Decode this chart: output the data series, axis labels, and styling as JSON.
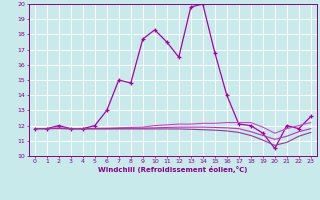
{
  "xlabel": "Windchill (Refroidissement éolien,°C)",
  "background_color": "#c8eaea",
  "grid_color": "#b0d8d8",
  "xlim": [
    -0.5,
    23.5
  ],
  "ylim": [
    10,
    20
  ],
  "yticks": [
    10,
    11,
    12,
    13,
    14,
    15,
    16,
    17,
    18,
    19,
    20
  ],
  "xticks": [
    0,
    1,
    2,
    3,
    4,
    5,
    6,
    7,
    8,
    9,
    10,
    11,
    12,
    13,
    14,
    15,
    16,
    17,
    18,
    19,
    20,
    21,
    22,
    23
  ],
  "series": [
    {
      "x": [
        0,
        1,
        2,
        3,
        4,
        5,
        6,
        7,
        8,
        9,
        10,
        11,
        12,
        13,
        14,
        15,
        16,
        17,
        18,
        19,
        20,
        21,
        22,
        23
      ],
      "y": [
        11.8,
        11.8,
        12.0,
        11.8,
        11.8,
        12.0,
        13.0,
        15.0,
        14.8,
        17.7,
        18.3,
        17.5,
        16.5,
        19.8,
        20.0,
        16.8,
        14.0,
        12.1,
        12.0,
        11.5,
        10.5,
        12.0,
        11.8,
        12.6
      ],
      "color": "#aa00aa",
      "linewidth": 0.9,
      "marker": "+",
      "markersize": 3.5
    },
    {
      "x": [
        0,
        1,
        2,
        3,
        4,
        5,
        6,
        7,
        8,
        9,
        10,
        11,
        12,
        13,
        14,
        15,
        16,
        17,
        18,
        19,
        20,
        21,
        22,
        23
      ],
      "y": [
        11.8,
        11.8,
        11.85,
        11.8,
        11.8,
        11.82,
        11.83,
        11.85,
        11.88,
        11.9,
        12.0,
        12.05,
        12.1,
        12.1,
        12.15,
        12.15,
        12.2,
        12.2,
        12.2,
        11.9,
        11.5,
        11.8,
        12.0,
        12.2
      ],
      "color": "#cc44cc",
      "linewidth": 0.8,
      "marker": null,
      "markersize": 0
    },
    {
      "x": [
        0,
        1,
        2,
        3,
        4,
        5,
        6,
        7,
        8,
        9,
        10,
        11,
        12,
        13,
        14,
        15,
        16,
        17,
        18,
        19,
        20,
        21,
        22,
        23
      ],
      "y": [
        11.8,
        11.8,
        11.82,
        11.8,
        11.8,
        11.8,
        11.8,
        11.82,
        11.83,
        11.83,
        11.85,
        11.88,
        11.9,
        11.9,
        11.9,
        11.88,
        11.85,
        11.8,
        11.6,
        11.35,
        11.1,
        11.3,
        11.6,
        11.8
      ],
      "color": "#bb33bb",
      "linewidth": 0.8,
      "marker": null,
      "markersize": 0
    },
    {
      "x": [
        0,
        1,
        2,
        3,
        4,
        5,
        6,
        7,
        8,
        9,
        10,
        11,
        12,
        13,
        14,
        15,
        16,
        17,
        18,
        19,
        20,
        21,
        22,
        23
      ],
      "y": [
        11.8,
        11.8,
        11.8,
        11.78,
        11.78,
        11.78,
        11.78,
        11.78,
        11.78,
        11.78,
        11.78,
        11.78,
        11.78,
        11.76,
        11.73,
        11.7,
        11.65,
        11.55,
        11.35,
        11.05,
        10.7,
        10.9,
        11.3,
        11.55
      ],
      "color": "#993399",
      "linewidth": 0.8,
      "marker": null,
      "markersize": 0
    }
  ]
}
